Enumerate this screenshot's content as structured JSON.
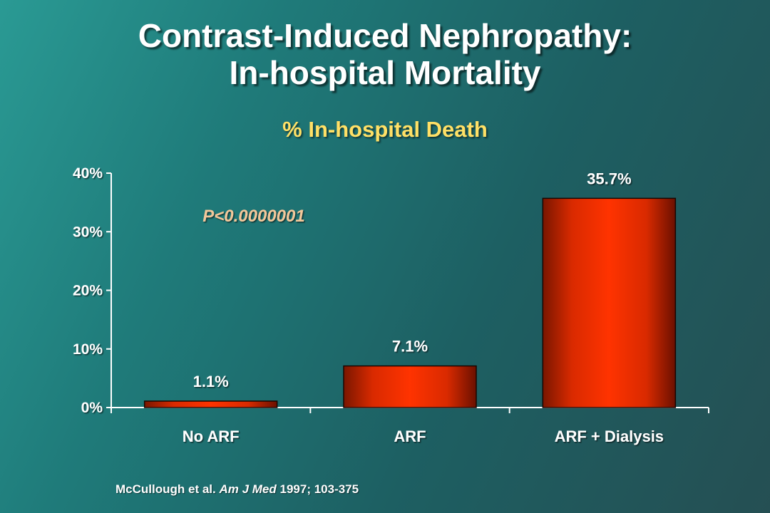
{
  "slide": {
    "title_line1": "Contrast-Induced Nephropathy:",
    "title_line2": "In-hospital Mortality"
  },
  "chart_data": {
    "type": "bar",
    "title": "% In-hospital Death",
    "categories": [
      "No ARF",
      "ARF",
      "ARF + Dialysis"
    ],
    "values": [
      1.1,
      7.1,
      35.7
    ],
    "data_labels": [
      "1.1%",
      "7.1%",
      "35.7%"
    ],
    "ylim": [
      0,
      40
    ],
    "yticks": [
      0,
      10,
      20,
      30,
      40
    ],
    "ytick_labels": [
      "0%",
      "10%",
      "20%",
      "30%",
      "40%"
    ],
    "xlabel": "",
    "ylabel": "",
    "grid": false,
    "annotation": "P<0.0000001",
    "bar_color": "#ff3300",
    "bar_edge_color": "#6b1000"
  },
  "citation": {
    "authors": "McCullough et al.",
    "journal": "Am J Med",
    "details": "1997; 103-375"
  },
  "colors": {
    "title_text": "#ffffff",
    "chart_title_text": "#ffe066",
    "annotation_text": "#f3c79a"
  }
}
